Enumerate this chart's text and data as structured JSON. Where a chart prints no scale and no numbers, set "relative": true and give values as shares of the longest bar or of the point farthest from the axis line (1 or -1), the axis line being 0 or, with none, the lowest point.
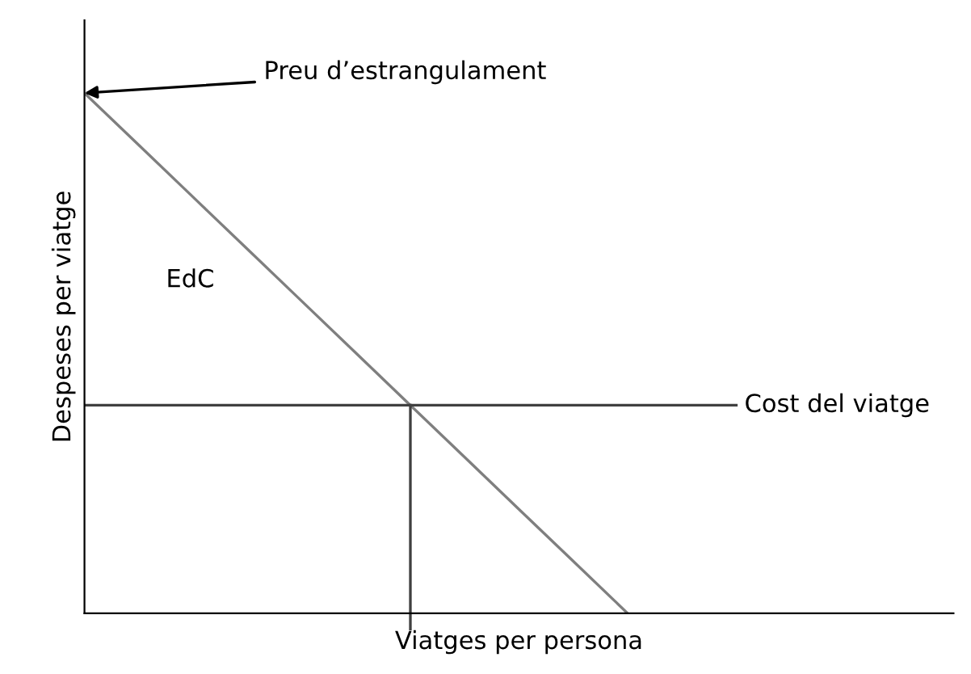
{
  "chart_data": {
    "type": "line",
    "relative": true,
    "xlabel": "Viatges per persona",
    "ylabel": "Despeses per viatge",
    "categories": [
      null,
      null,
      null,
      null,
      null,
      null,
      null,
      null,
      null,
      null,
      null,
      null,
      null,
      null,
      null,
      null,
      null
    ],
    "series": [
      {
        "values": [
          1,
          0.9,
          0.8,
          0.7,
          0.6,
          0.5,
          0.4,
          0.3,
          0.2,
          0.1,
          0,
          null,
          null,
          null,
          null,
          null,
          null
        ],
        "color": "#7f7f7f"
      },
      {
        "name": "Cost del viatge",
        "values": [
          0.4,
          0.4,
          0.4,
          0.4,
          0.4,
          0.4,
          0.4,
          0.4,
          0.4,
          0.4,
          0.4,
          0.4,
          0.4,
          null,
          null,
          null,
          null
        ],
        "color": "#404040"
      }
    ],
    "annotations": [
      "Preu d’estrangulament",
      "EdC"
    ],
    "line_style": "solid",
    "legend": false,
    "grid": false
  }
}
